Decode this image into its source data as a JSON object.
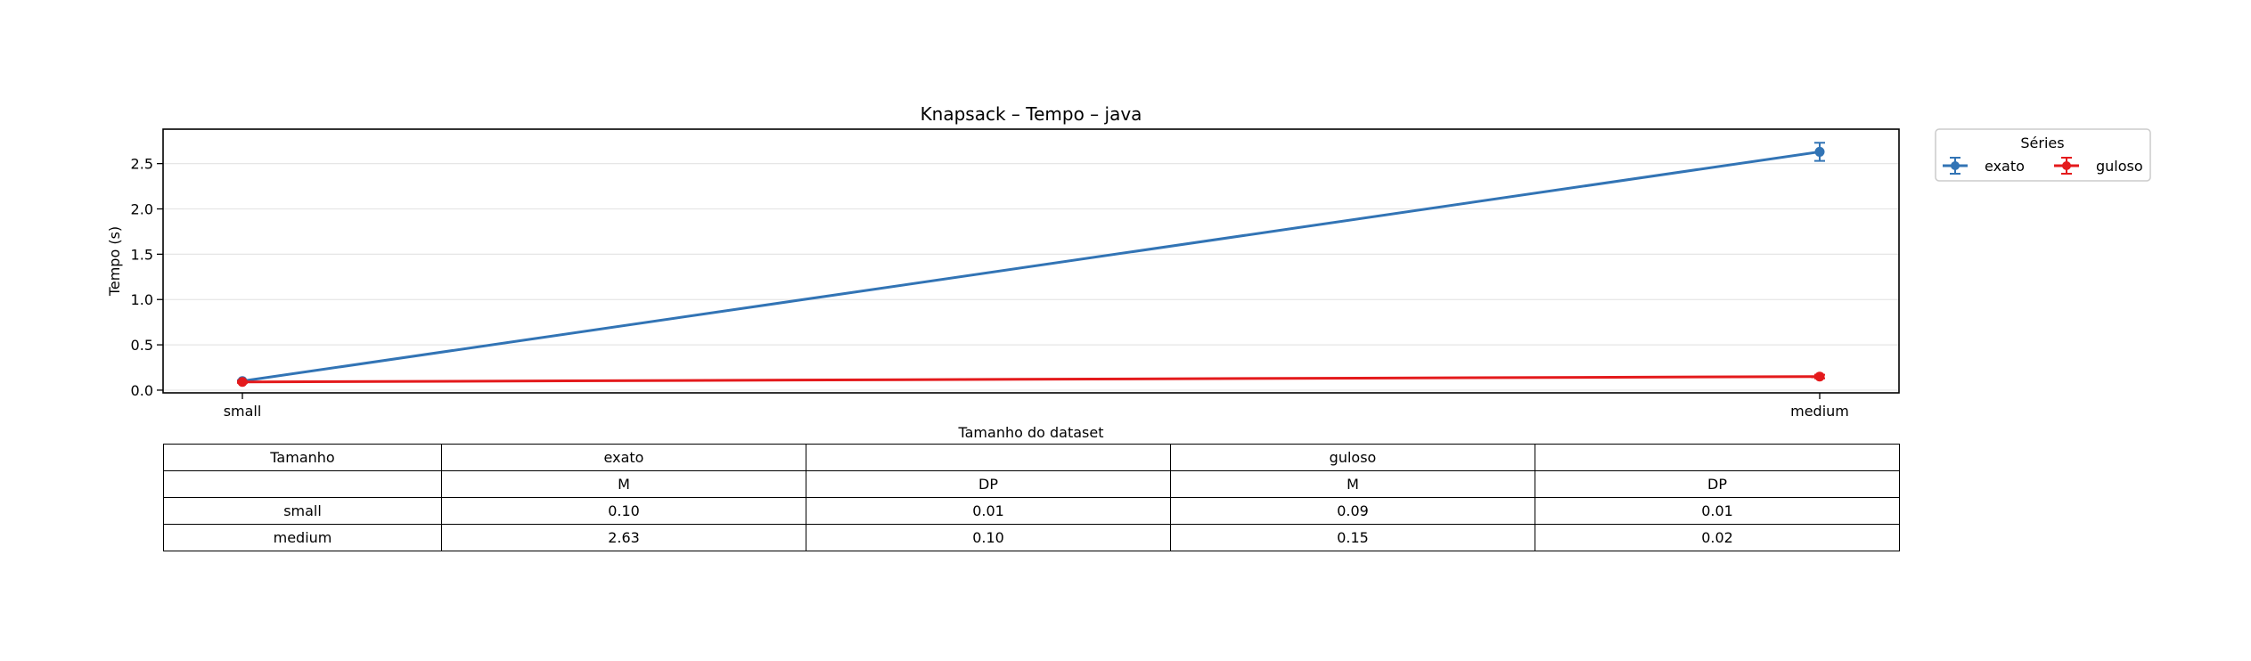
{
  "chart_data": {
    "type": "line",
    "title": "Knapsack – Tempo – java",
    "xlabel": "Tamanho do dataset",
    "ylabel": "Tempo (s)",
    "categories": [
      "small",
      "medium"
    ],
    "ylim": [
      -0.03,
      2.88
    ],
    "yticks": [
      0.0,
      0.5,
      1.0,
      1.5,
      2.0,
      2.5
    ],
    "ytick_labels": [
      "0.0",
      "0.5",
      "1.0",
      "1.5",
      "2.0",
      "2.5"
    ],
    "grid": true,
    "legend": {
      "title": "Séries",
      "placement": "right",
      "columns": 2
    },
    "series": [
      {
        "name": "exato",
        "color": "#3274b5",
        "values": [
          0.1,
          2.63
        ],
        "errors": [
          0.01,
          0.1
        ]
      },
      {
        "name": "guloso",
        "color": "#e41a1c",
        "values": [
          0.09,
          0.15
        ],
        "errors": [
          0.01,
          0.02
        ]
      }
    ]
  },
  "table": {
    "header": [
      "Tamanho",
      "exato",
      "",
      "guloso",
      ""
    ],
    "subheader": [
      "",
      "M",
      "DP",
      "M",
      "DP"
    ],
    "rows": [
      [
        "small",
        "0.10",
        "0.01",
        "0.09",
        "0.01"
      ],
      [
        "medium",
        "2.63",
        "0.10",
        "0.15",
        "0.02"
      ]
    ]
  }
}
